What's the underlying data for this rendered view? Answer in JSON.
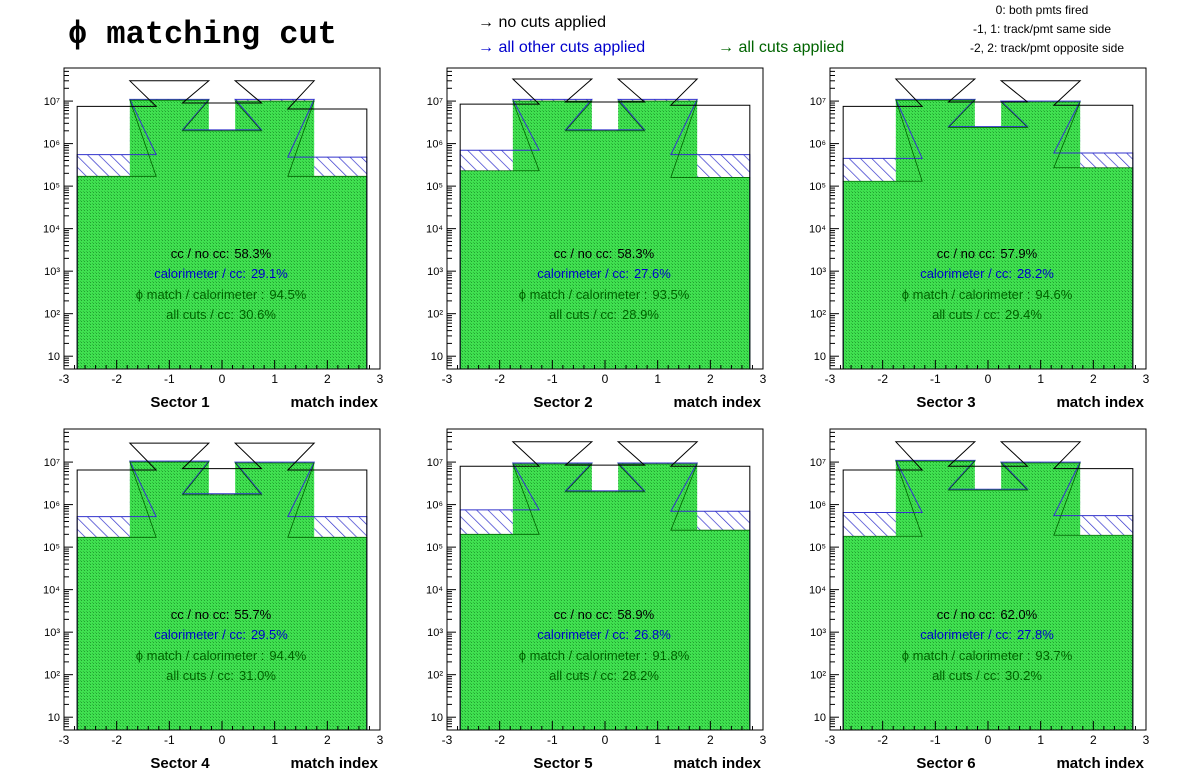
{
  "title": "ϕ matching cut",
  "legend": {
    "no_cuts": "→ no cuts applied",
    "other_cuts": "→ all other cuts applied",
    "all_cuts": "→ all cuts applied"
  },
  "notes": [
    "0: both pmts fired",
    "-1, 1: track/pmt same side",
    "-2, 2: track/pmt opposite side"
  ],
  "colors": {
    "no_cuts": "#000000",
    "other_cuts": "#0000cc",
    "all_cuts": "#006400",
    "fill_all_cuts": "#33dd44",
    "hatch_other_cuts": "#3333cc"
  },
  "stat_labels": {
    "cc": "cc / no cc:",
    "calorimeter": "calorimeter / cc:",
    "phi_match": "ϕ match / calorimeter :",
    "all_cuts": "all cuts / cc:"
  },
  "chart_data": [
    {
      "type": "bar",
      "sector_label": "Sector 1",
      "xlabel": "match index",
      "x_bins": [
        -2,
        -1,
        0,
        1,
        2
      ],
      "xlim": [
        -3,
        3
      ],
      "ylim": [
        5,
        60000000
      ],
      "yscale": "log",
      "x_ticks": [
        -3,
        -2,
        -1,
        0,
        1,
        2,
        3
      ],
      "y_ticks": [
        {
          "v": 10,
          "label": "10"
        },
        {
          "v": 100,
          "label": "10²"
        },
        {
          "v": 1000,
          "label": "10³"
        },
        {
          "v": 10000,
          "label": "10⁴"
        },
        {
          "v": 100000,
          "label": "10⁵"
        },
        {
          "v": 1000000,
          "label": "10⁶"
        },
        {
          "v": 10000000,
          "label": "10⁷"
        }
      ],
      "series": [
        {
          "name": "no cuts applied",
          "values": [
            7500000,
            30000000,
            9000000,
            30000000,
            6500000
          ]
        },
        {
          "name": "all other cuts applied",
          "values": [
            550000,
            11000000,
            2100000,
            11000000,
            480000
          ]
        },
        {
          "name": "all cuts applied",
          "values": [
            170000,
            10500000,
            2000000,
            10000000,
            170000
          ]
        }
      ],
      "stats": {
        "cc": "58.3%",
        "calorimeter": "29.1%",
        "phi_match": "94.5%",
        "all_cuts": "30.6%"
      }
    },
    {
      "type": "bar",
      "sector_label": "Sector 2",
      "xlabel": "match index",
      "x_bins": [
        -2,
        -1,
        0,
        1,
        2
      ],
      "xlim": [
        -3,
        3
      ],
      "ylim": [
        5,
        60000000
      ],
      "yscale": "log",
      "x_ticks": [
        -3,
        -2,
        -1,
        0,
        1,
        2,
        3
      ],
      "y_ticks": [
        {
          "v": 10,
          "label": "10"
        },
        {
          "v": 100,
          "label": "10²"
        },
        {
          "v": 1000,
          "label": "10³"
        },
        {
          "v": 10000,
          "label": "10⁴"
        },
        {
          "v": 100000,
          "label": "10⁵"
        },
        {
          "v": 1000000,
          "label": "10⁶"
        },
        {
          "v": 10000000,
          "label": "10⁷"
        }
      ],
      "series": [
        {
          "name": "no cuts applied",
          "values": [
            8500000,
            33000000,
            9500000,
            33000000,
            8000000
          ]
        },
        {
          "name": "all other cuts applied",
          "values": [
            700000,
            11000000,
            2100000,
            11000000,
            550000
          ]
        },
        {
          "name": "all cuts applied",
          "values": [
            230000,
            10000000,
            2000000,
            10000000,
            160000
          ]
        }
      ],
      "stats": {
        "cc": "58.3%",
        "calorimeter": "27.6%",
        "phi_match": "93.5%",
        "all_cuts": "28.9%"
      }
    },
    {
      "type": "bar",
      "sector_label": "Sector 3",
      "xlabel": "match index",
      "x_bins": [
        -2,
        -1,
        0,
        1,
        2
      ],
      "xlim": [
        -3,
        3
      ],
      "ylim": [
        5,
        60000000
      ],
      "yscale": "log",
      "x_ticks": [
        -3,
        -2,
        -1,
        0,
        1,
        2,
        3
      ],
      "y_ticks": [
        {
          "v": 10,
          "label": "10"
        },
        {
          "v": 100,
          "label": "10²"
        },
        {
          "v": 1000,
          "label": "10³"
        },
        {
          "v": 10000,
          "label": "10⁴"
        },
        {
          "v": 100000,
          "label": "10⁵"
        },
        {
          "v": 1000000,
          "label": "10⁶"
        },
        {
          "v": 10000000,
          "label": "10⁷"
        }
      ],
      "series": [
        {
          "name": "no cuts applied",
          "values": [
            7500000,
            33000000,
            9500000,
            30000000,
            8000000
          ]
        },
        {
          "name": "all other cuts applied",
          "values": [
            450000,
            11000000,
            2500000,
            10000000,
            600000
          ]
        },
        {
          "name": "all cuts applied",
          "values": [
            130000,
            10500000,
            2400000,
            9500000,
            270000
          ]
        }
      ],
      "stats": {
        "cc": "57.9%",
        "calorimeter": "28.2%",
        "phi_match": "94.6%",
        "all_cuts": "29.4%"
      }
    },
    {
      "type": "bar",
      "sector_label": "Sector 4",
      "xlabel": "match index",
      "x_bins": [
        -2,
        -1,
        0,
        1,
        2
      ],
      "xlim": [
        -3,
        3
      ],
      "ylim": [
        5,
        60000000
      ],
      "yscale": "log",
      "x_ticks": [
        -3,
        -2,
        -1,
        0,
        1,
        2,
        3
      ],
      "y_ticks": [
        {
          "v": 10,
          "label": "10"
        },
        {
          "v": 100,
          "label": "10²"
        },
        {
          "v": 1000,
          "label": "10³"
        },
        {
          "v": 10000,
          "label": "10⁴"
        },
        {
          "v": 100000,
          "label": "10⁵"
        },
        {
          "v": 1000000,
          "label": "10⁶"
        },
        {
          "v": 10000000,
          "label": "10⁷"
        }
      ],
      "series": [
        {
          "name": "no cuts applied",
          "values": [
            6500000,
            28000000,
            7000000,
            28000000,
            6500000
          ]
        },
        {
          "name": "all other cuts applied",
          "values": [
            520000,
            10500000,
            1800000,
            10000000,
            520000
          ]
        },
        {
          "name": "all cuts applied",
          "values": [
            170000,
            10000000,
            1700000,
            9500000,
            170000
          ]
        }
      ],
      "stats": {
        "cc": "55.7%",
        "calorimeter": "29.5%",
        "phi_match": "94.4%",
        "all_cuts": "31.0%"
      }
    },
    {
      "type": "bar",
      "sector_label": "Sector 5",
      "xlabel": "match index",
      "x_bins": [
        -2,
        -1,
        0,
        1,
        2
      ],
      "xlim": [
        -3,
        3
      ],
      "ylim": [
        5,
        60000000
      ],
      "yscale": "log",
      "x_ticks": [
        -3,
        -2,
        -1,
        0,
        1,
        2,
        3
      ],
      "y_ticks": [
        {
          "v": 10,
          "label": "10"
        },
        {
          "v": 100,
          "label": "10²"
        },
        {
          "v": 1000,
          "label": "10³"
        },
        {
          "v": 10000,
          "label": "10⁴"
        },
        {
          "v": 100000,
          "label": "10⁵"
        },
        {
          "v": 1000000,
          "label": "10⁶"
        },
        {
          "v": 10000000,
          "label": "10⁷"
        }
      ],
      "series": [
        {
          "name": "no cuts applied",
          "values": [
            8000000,
            30000000,
            8500000,
            30000000,
            8000000
          ]
        },
        {
          "name": "all other cuts applied",
          "values": [
            750000,
            9500000,
            2100000,
            9500000,
            700000
          ]
        },
        {
          "name": "all cuts applied",
          "values": [
            200000,
            9000000,
            2000000,
            9000000,
            250000
          ]
        }
      ],
      "stats": {
        "cc": "58.9%",
        "calorimeter": "26.8%",
        "phi_match": "91.8%",
        "all_cuts": "28.2%"
      }
    },
    {
      "type": "bar",
      "sector_label": "Sector 6",
      "xlabel": "match index",
      "x_bins": [
        -2,
        -1,
        0,
        1,
        2
      ],
      "xlim": [
        -3,
        3
      ],
      "ylim": [
        5,
        60000000
      ],
      "yscale": "log",
      "x_ticks": [
        -3,
        -2,
        -1,
        0,
        1,
        2,
        3
      ],
      "y_ticks": [
        {
          "v": 10,
          "label": "10"
        },
        {
          "v": 100,
          "label": "10²"
        },
        {
          "v": 1000,
          "label": "10³"
        },
        {
          "v": 10000,
          "label": "10⁴"
        },
        {
          "v": 100000,
          "label": "10⁵"
        },
        {
          "v": 1000000,
          "label": "10⁶"
        },
        {
          "v": 10000000,
          "label": "10⁷"
        }
      ],
      "series": [
        {
          "name": "no cuts applied",
          "values": [
            6500000,
            30000000,
            8000000,
            30000000,
            7000000
          ]
        },
        {
          "name": "all other cuts applied",
          "values": [
            650000,
            11000000,
            2300000,
            10000000,
            550000
          ]
        },
        {
          "name": "all cuts applied",
          "values": [
            180000,
            10500000,
            2200000,
            9500000,
            190000
          ]
        }
      ],
      "stats": {
        "cc": "62.0%",
        "calorimeter": "27.8%",
        "phi_match": "93.7%",
        "all_cuts": "30.2%"
      }
    }
  ]
}
